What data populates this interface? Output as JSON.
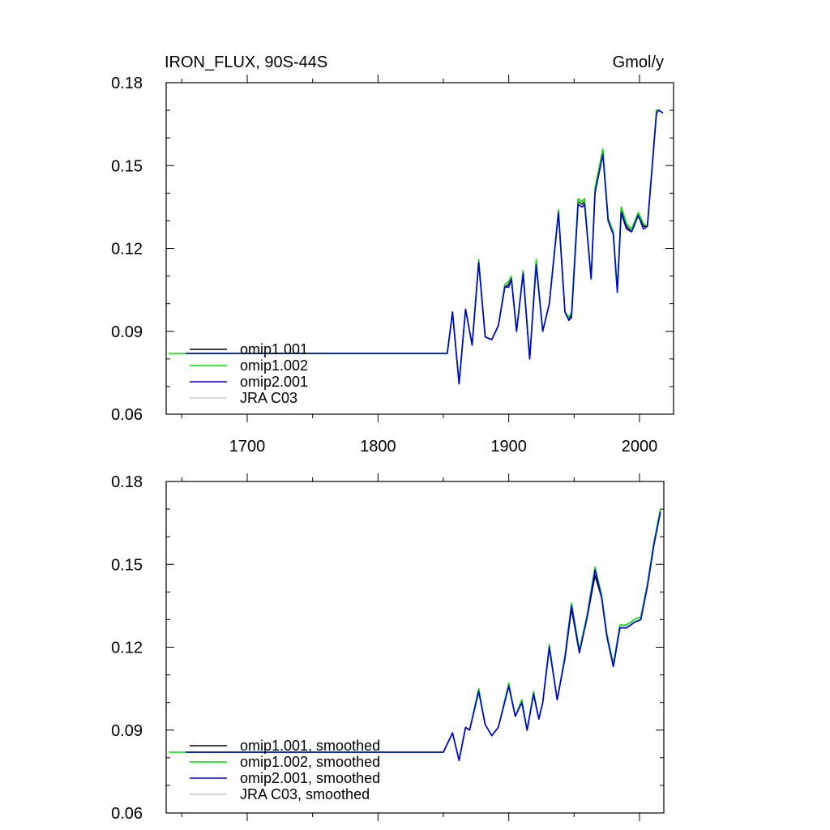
{
  "chart_data": [
    {
      "type": "line",
      "title": "IRON_FLUX, 90S-44S",
      "units": "Gmol/y",
      "xlim": [
        1640,
        2020
      ],
      "ylim": [
        0.06,
        0.18
      ],
      "yticks": [
        0.06,
        0.09,
        0.12,
        0.15,
        0.18
      ],
      "ytick_labels": [
        "0.06",
        "0.09",
        "0.12",
        "0.15",
        "0.18"
      ],
      "xticks": [
        1700,
        1800,
        1900,
        2000
      ],
      "xtick_labels": [
        "1700",
        "1800",
        "1900",
        "2000"
      ],
      "legend_position": "bottom-left",
      "series": [
        {
          "name": "omip1.001",
          "color": "#000000",
          "x": [
            1653,
            1853,
            1857,
            1862,
            1867,
            1872,
            1877,
            1882,
            1887,
            1892,
            1897,
            1900,
            1902,
            1906,
            1911,
            1916,
            1921,
            1926,
            1931,
            1938,
            1943,
            1946,
            1948,
            1953,
            1956,
            1958,
            1963,
            1966,
            1972,
            1976,
            1980,
            1983,
            1986,
            1990,
            1994,
            1999,
            2003,
            2006,
            2013,
            2015,
            2018
          ],
          "values": [
            0.082,
            0.082,
            0.097,
            0.071,
            0.098,
            0.085,
            0.115,
            0.088,
            0.087,
            0.092,
            0.106,
            0.107,
            0.109,
            0.09,
            0.111,
            0.08,
            0.115,
            0.09,
            0.1,
            0.133,
            0.097,
            0.094,
            0.096,
            0.137,
            0.136,
            0.137,
            0.109,
            0.141,
            0.155,
            0.13,
            0.125,
            0.105,
            0.134,
            0.128,
            0.126,
            0.132,
            0.128,
            0.128,
            0.17,
            0.17,
            0.169
          ]
        },
        {
          "name": "omip1.002",
          "color": "#00dd00",
          "x": [
            1640,
            1853,
            1857,
            1862,
            1867,
            1872,
            1877,
            1882,
            1887,
            1892,
            1897,
            1900,
            1902,
            1906,
            1911,
            1916,
            1921,
            1926,
            1931,
            1938,
            1943,
            1946,
            1948,
            1953,
            1956,
            1958,
            1963,
            1966,
            1972,
            1976,
            1980,
            1983,
            1986,
            1990,
            1994,
            1999,
            2003,
            2006,
            2013,
            2015,
            2018
          ],
          "values": [
            0.082,
            0.082,
            0.097,
            0.071,
            0.098,
            0.085,
            0.116,
            0.088,
            0.087,
            0.092,
            0.107,
            0.108,
            0.11,
            0.09,
            0.112,
            0.08,
            0.116,
            0.09,
            0.1,
            0.134,
            0.097,
            0.095,
            0.097,
            0.138,
            0.137,
            0.138,
            0.109,
            0.142,
            0.156,
            0.131,
            0.126,
            0.105,
            0.135,
            0.129,
            0.127,
            0.133,
            0.129,
            0.128,
            0.17,
            0.17,
            0.169
          ]
        },
        {
          "name": "omip2.001",
          "color": "#0000dd",
          "x": [
            1653,
            1853,
            1857,
            1862,
            1867,
            1872,
            1877,
            1882,
            1887,
            1892,
            1897,
            1900,
            1902,
            1906,
            1911,
            1916,
            1921,
            1926,
            1931,
            1938,
            1943,
            1946,
            1948,
            1953,
            1956,
            1958,
            1963,
            1966,
            1972,
            1976,
            1980,
            1983,
            1986,
            1990,
            1994,
            1999,
            2003,
            2006,
            2013,
            2015,
            2018
          ],
          "values": [
            0.082,
            0.082,
            0.097,
            0.071,
            0.098,
            0.085,
            0.115,
            0.088,
            0.087,
            0.092,
            0.106,
            0.106,
            0.109,
            0.09,
            0.111,
            0.08,
            0.114,
            0.09,
            0.1,
            0.133,
            0.097,
            0.094,
            0.095,
            0.136,
            0.135,
            0.136,
            0.109,
            0.14,
            0.154,
            0.13,
            0.125,
            0.104,
            0.133,
            0.127,
            0.126,
            0.132,
            0.127,
            0.128,
            0.169,
            0.17,
            0.169
          ]
        },
        {
          "name": "JRA C03",
          "color": "#c8c8c8",
          "x": [],
          "values": []
        }
      ]
    },
    {
      "type": "line",
      "title": "",
      "xlim": [
        1640,
        2020
      ],
      "ylim": [
        0.06,
        0.18
      ],
      "yticks": [
        0.06,
        0.09,
        0.12,
        0.15,
        0.18
      ],
      "ytick_labels": [
        "0.06",
        "0.09",
        "0.12",
        "0.15",
        "0.18"
      ],
      "xticks": [
        1700,
        1800,
        1900,
        2000
      ],
      "legend_position": "bottom-left",
      "series": [
        {
          "name": "omip1.001, smoothed",
          "color": "#000000",
          "x": [
            1653,
            1850,
            1857,
            1862,
            1867,
            1870,
            1877,
            1882,
            1887,
            1892,
            1900,
            1905,
            1910,
            1914,
            1919,
            1923,
            1926,
            1931,
            1937,
            1943,
            1948,
            1954,
            1960,
            1966,
            1971,
            1975,
            1980,
            1985,
            1990,
            1996,
            2001,
            2006,
            2011,
            2016
          ],
          "values": [
            0.082,
            0.082,
            0.089,
            0.079,
            0.091,
            0.09,
            0.104,
            0.092,
            0.088,
            0.091,
            0.106,
            0.095,
            0.1,
            0.09,
            0.103,
            0.094,
            0.1,
            0.12,
            0.101,
            0.116,
            0.134,
            0.118,
            0.131,
            0.146,
            0.138,
            0.124,
            0.113,
            0.127,
            0.127,
            0.129,
            0.13,
            0.142,
            0.157,
            0.169
          ]
        },
        {
          "name": "omip1.002, smoothed",
          "color": "#00dd00",
          "x": [
            1640,
            1850,
            1857,
            1862,
            1867,
            1870,
            1877,
            1882,
            1887,
            1892,
            1900,
            1905,
            1910,
            1914,
            1919,
            1923,
            1926,
            1931,
            1937,
            1943,
            1948,
            1954,
            1960,
            1966,
            1971,
            1975,
            1980,
            1985,
            1990,
            1996,
            2001,
            2006,
            2011,
            2016
          ],
          "values": [
            0.082,
            0.082,
            0.089,
            0.079,
            0.091,
            0.09,
            0.105,
            0.092,
            0.088,
            0.091,
            0.107,
            0.095,
            0.101,
            0.09,
            0.104,
            0.094,
            0.1,
            0.121,
            0.101,
            0.117,
            0.136,
            0.119,
            0.132,
            0.149,
            0.139,
            0.125,
            0.114,
            0.128,
            0.128,
            0.13,
            0.131,
            0.143,
            0.158,
            0.17
          ]
        },
        {
          "name": "omip2.001, smoothed",
          "color": "#0000dd",
          "x": [
            1653,
            1850,
            1857,
            1862,
            1867,
            1870,
            1877,
            1882,
            1887,
            1892,
            1900,
            1905,
            1910,
            1914,
            1919,
            1923,
            1926,
            1931,
            1937,
            1943,
            1948,
            1954,
            1960,
            1966,
            1971,
            1975,
            1980,
            1985,
            1990,
            1996,
            2001,
            2006,
            2011,
            2016
          ],
          "values": [
            0.082,
            0.082,
            0.089,
            0.079,
            0.091,
            0.09,
            0.104,
            0.092,
            0.088,
            0.091,
            0.106,
            0.095,
            0.1,
            0.09,
            0.103,
            0.094,
            0.1,
            0.12,
            0.101,
            0.116,
            0.135,
            0.118,
            0.131,
            0.148,
            0.138,
            0.124,
            0.113,
            0.127,
            0.127,
            0.129,
            0.13,
            0.142,
            0.157,
            0.169
          ]
        },
        {
          "name": "JRA C03, smoothed",
          "color": "#c8c8c8",
          "x": [],
          "values": []
        }
      ]
    }
  ]
}
